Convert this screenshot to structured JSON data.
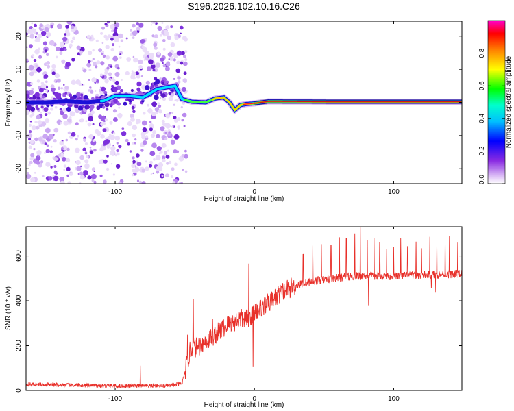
{
  "title": "S196.2026.102.10.16.C26",
  "chart_data": [
    {
      "type": "heatmap",
      "xlabel": "Height of straight line (km)",
      "ylabel": "Frequency (Hz)",
      "xlim": [
        -164,
        149
      ],
      "ylim": [
        -24.5,
        24.5
      ],
      "xticks": [
        -100,
        0,
        100
      ],
      "xtick_labels": [
        "-100",
        "0",
        "100"
      ],
      "yticks": [
        -20,
        -10,
        0,
        10,
        20
      ],
      "ytick_labels": [
        "-20",
        "-10",
        "0",
        "10",
        "20"
      ],
      "colorbar": {
        "label": "Normalized spectral amplitude",
        "range": [
          0,
          1
        ],
        "ticks": [
          0,
          0.2,
          0.4,
          0.6,
          0.8
        ],
        "tick_labels": [
          "0.0",
          "0.2",
          "0.4",
          "0.6",
          "0.8"
        ],
        "colors": [
          "#e8d9f8",
          "#7b2fd6",
          "#0000ff",
          "#00e5ff",
          "#00ff00",
          "#ffff00",
          "#ff0000",
          "#ff00cc"
        ]
      },
      "ridge": [
        [
          -164,
          0
        ],
        [
          -150,
          0
        ],
        [
          -135,
          0.3
        ],
        [
          -120,
          0
        ],
        [
          -108,
          0.5
        ],
        [
          -100,
          2
        ],
        [
          -90,
          2
        ],
        [
          -80,
          1.5
        ],
        [
          -70,
          4
        ],
        [
          -57,
          5
        ],
        [
          -52,
          1
        ],
        [
          -45,
          0.2
        ],
        [
          -35,
          0
        ],
        [
          -28,
          1.2
        ],
        [
          -22,
          1.5
        ],
        [
          -18,
          0
        ],
        [
          -14,
          -2.3
        ],
        [
          -10,
          -0.8
        ],
        [
          -6,
          -0.5
        ],
        [
          0,
          -0.3
        ],
        [
          10,
          0.3
        ],
        [
          60,
          0.2
        ],
        [
          149,
          0.2
        ]
      ],
      "noise_region": [
        -164,
        -55
      ]
    },
    {
      "type": "line",
      "xlabel": "Height of straight line (km)",
      "ylabel": "SNR (10 * v/v)",
      "xlim": [
        -164,
        149
      ],
      "ylim": [
        0,
        730
      ],
      "xticks": [
        -100,
        0,
        100
      ],
      "xtick_labels": [
        "-100",
        "0",
        "100"
      ],
      "yticks": [
        0,
        200,
        400,
        600
      ],
      "ytick_labels": [
        "0",
        "200",
        "400",
        "600"
      ],
      "series": [
        {
          "name": "SNR",
          "color": "#e8302a",
          "baseline": [
            [
              -164,
              28
            ],
            [
              -100,
              20
            ],
            [
              -60,
              22
            ],
            [
              -52,
              30
            ],
            [
              -46,
              180
            ],
            [
              -40,
              200
            ],
            [
              -30,
              240
            ],
            [
              -20,
              290
            ],
            [
              -10,
              320
            ],
            [
              -5,
              320
            ],
            [
              0,
              350
            ],
            [
              10,
              390
            ],
            [
              20,
              440
            ],
            [
              30,
              470
            ],
            [
              45,
              490
            ],
            [
              70,
              510
            ],
            [
              100,
              510
            ],
            [
              149,
              520
            ]
          ],
          "spikes": [
            [
              -82,
              90
            ],
            [
              -48,
              120
            ],
            [
              -44,
              220
            ],
            [
              -30,
              80
            ],
            [
              -4,
              240
            ],
            [
              -1,
              -240
            ],
            [
              35,
              130
            ],
            [
              42,
              160
            ],
            [
              48,
              160
            ],
            [
              55,
              150
            ],
            [
              61,
              180
            ],
            [
              66,
              170
            ],
            [
              72,
              190
            ],
            [
              76,
              230
            ],
            [
              81,
              160
            ],
            [
              86,
              170
            ],
            [
              90,
              150
            ],
            [
              95,
              120
            ],
            [
              100,
              130
            ],
            [
              105,
              170
            ],
            [
              110,
              130
            ],
            [
              116,
              150
            ],
            [
              120,
              120
            ],
            [
              126,
              170
            ],
            [
              131,
              140
            ],
            [
              137,
              150
            ],
            [
              140,
              170
            ],
            [
              146,
              140
            ]
          ],
          "dips": [
            [
              82,
              -130
            ],
            [
              127,
              -60
            ],
            [
              130,
              -80
            ]
          ]
        }
      ]
    }
  ]
}
